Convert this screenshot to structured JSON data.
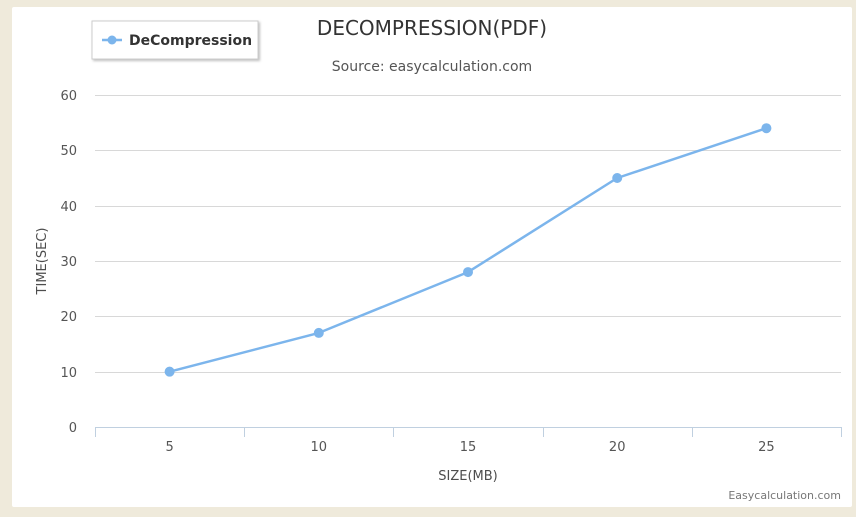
{
  "chart_data": {
    "type": "line",
    "title": "DECOMPRESSION(PDF)",
    "subtitle": "Source: easycalculation.com",
    "xlabel": "SIZE(MB)",
    "ylabel": "TIME(SEC)",
    "categories": [
      "5",
      "10",
      "15",
      "20",
      "25"
    ],
    "series": [
      {
        "name": "DeCompression",
        "values": [
          10,
          17,
          28,
          45,
          54
        ]
      }
    ],
    "ylim": [
      0,
      60
    ],
    "yticks": [
      "0",
      "10",
      "20",
      "30",
      "40",
      "50",
      "60"
    ],
    "grid": true,
    "legend_position": "top-left",
    "series_color": "#7cb5ec"
  },
  "credit": "Easycalculation.com"
}
